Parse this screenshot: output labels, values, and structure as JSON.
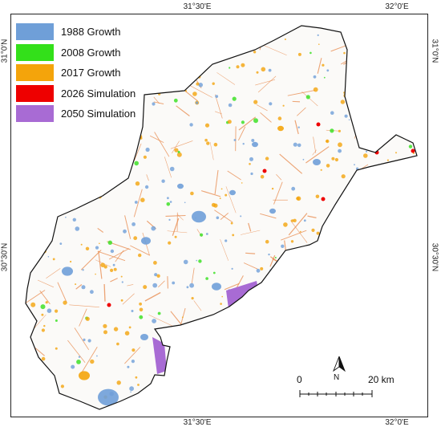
{
  "legend": [
    {
      "label": "1988 Growth",
      "color": "#6f9fd8"
    },
    {
      "label": "2008 Growth",
      "color": "#33e01a"
    },
    {
      "label": "2017 Growth",
      "color": "#f4a40b"
    },
    {
      "label": "2026 Simulation",
      "color": "#ee0000"
    },
    {
      "label": "2050 Simulation",
      "color": "#a86bd4"
    }
  ],
  "coordinates": {
    "top": [
      "31°30'E",
      "32°0'E"
    ],
    "bottom": [
      "31°30'E",
      "32°0'E"
    ],
    "left": [
      "31°0'N",
      "30°30'N"
    ],
    "right": [
      "31°0'N",
      "30°30'N"
    ]
  },
  "north_arrow": {
    "label": "N"
  },
  "scale_bar": {
    "start": "0",
    "end": "20 km"
  },
  "colors": {
    "road_network": "#e8884a",
    "boundary": "#111111",
    "background": "#ffffff"
  }
}
